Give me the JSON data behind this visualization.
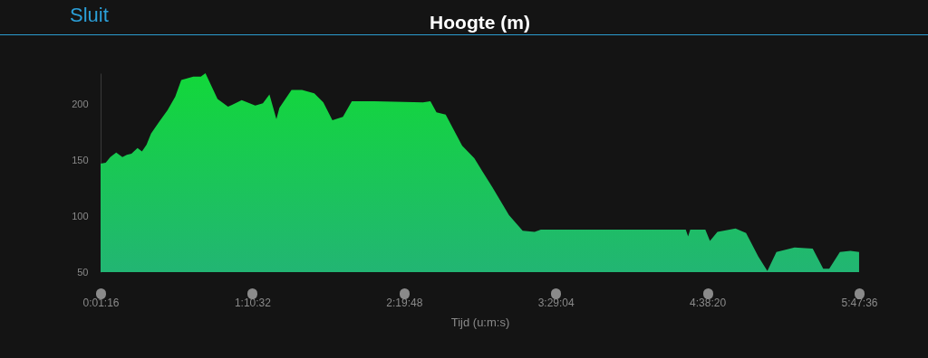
{
  "chart_data": {
    "type": "area",
    "title": "Hoogte (m)",
    "xlabel": "Tijd (u:m:s)",
    "annotations": [
      "Sluit"
    ],
    "x": [
      0.0211,
      0.06,
      0.095,
      0.14,
      0.187,
      0.221,
      0.256,
      0.302,
      0.336,
      0.371,
      0.405,
      0.463,
      0.531,
      0.589,
      0.635,
      0.727,
      0.784,
      0.819,
      0.911,
      0.991,
      1.095,
      1.198,
      1.256,
      1.306,
      1.359,
      1.382,
      1.474,
      1.554,
      1.647,
      1.716,
      1.785,
      1.865,
      1.933,
      2.014,
      2.106,
      2.474,
      2.531,
      2.577,
      2.647,
      2.773,
      2.865,
      2.922,
      3.002,
      3.129,
      3.233,
      3.324,
      3.371,
      3.945,
      4.474,
      4.492,
      4.508,
      4.623,
      4.658,
      4.715,
      4.853,
      4.933,
      5.026,
      5.095,
      5.164,
      5.302,
      5.44,
      5.52,
      5.566,
      5.647,
      5.727,
      5.793
    ],
    "series": [
      {
        "color": "#12d83a",
        "values": [
          147,
          148,
          153,
          157,
          153,
          155,
          156,
          161,
          158,
          164,
          174,
          184,
          195,
          207,
          222,
          225,
          225,
          228,
          205,
          198,
          204,
          199,
          201,
          209,
          187,
          197,
          213,
          213,
          210,
          202,
          186,
          189,
          203,
          203,
          203,
          202,
          203,
          193,
          191,
          163,
          152,
          141,
          126,
          101,
          87,
          86,
          88,
          88,
          88,
          82,
          88,
          88,
          78,
          86,
          89,
          85,
          64,
          51,
          68,
          72,
          71,
          53,
          53,
          68,
          69,
          68
        ]
      }
    ],
    "ylim": [
      50,
      228
    ],
    "yticks": [
      50,
      100,
      150,
      200
    ],
    "xlim": [
      0.0211,
      5.7933
    ],
    "xticks": [
      {
        "value": 0.0211,
        "label": "0:01:16"
      },
      {
        "value": 1.1756,
        "label": "1:10:32"
      },
      {
        "value": 2.33,
        "label": "2:19:48"
      },
      {
        "value": 3.4844,
        "label": "3:29:04"
      },
      {
        "value": 4.6389,
        "label": "4:38:20"
      },
      {
        "value": 5.7933,
        "label": "5:47:36"
      }
    ],
    "grid": false
  }
}
